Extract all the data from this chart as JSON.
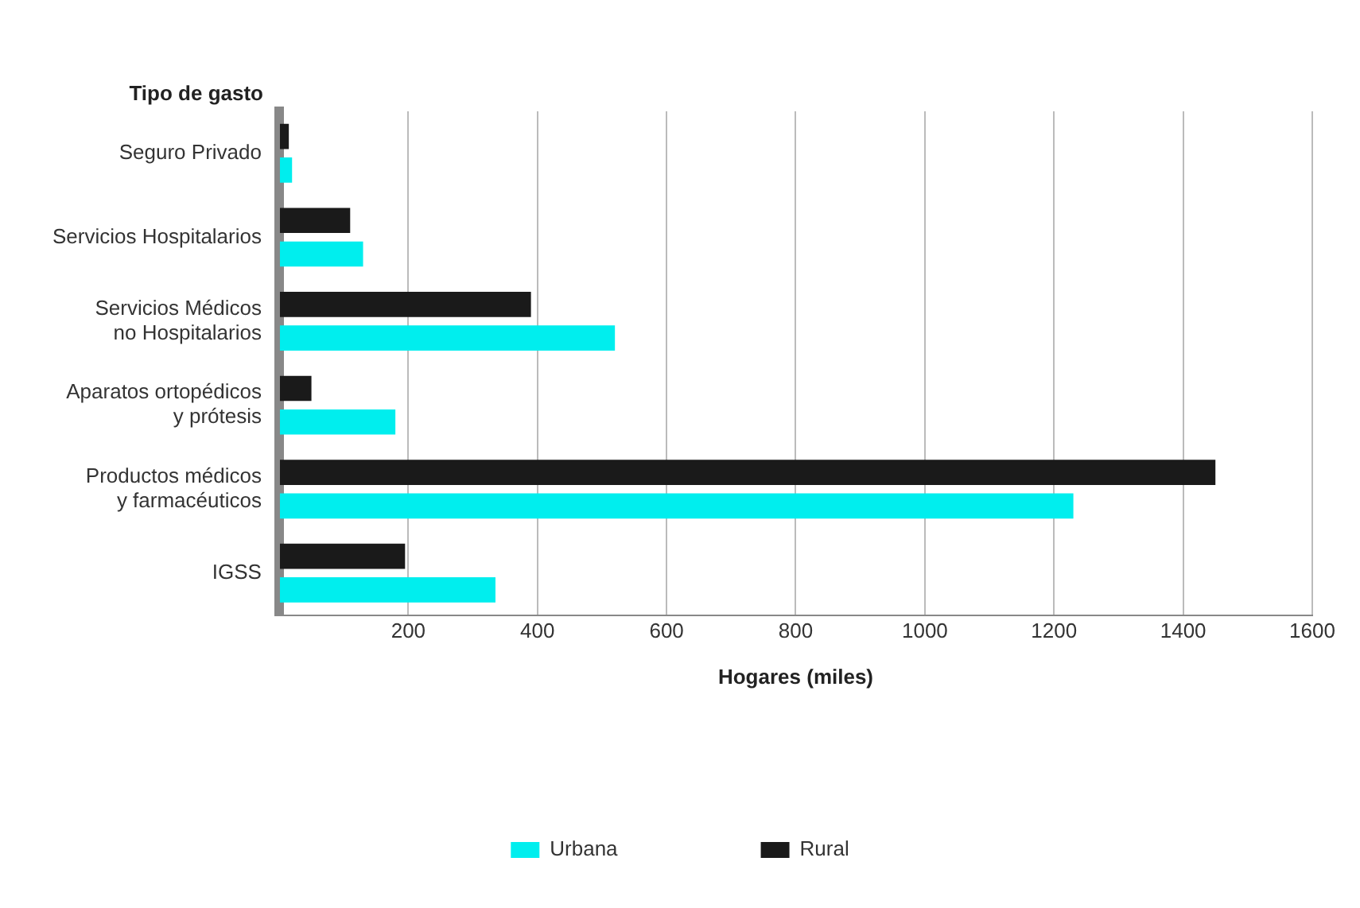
{
  "chart_data": {
    "type": "bar",
    "orientation": "horizontal",
    "ylabel": "Tipo de gasto",
    "xlabel": "Hogares (miles)",
    "categories": [
      "Seguro Privado",
      "Servicios Hospitalarios",
      "Servicios Médicos no Hospitalarios",
      "Aparatos ortopédicos y prótesis",
      "Productos médicos y farmacéuticos",
      "IGSS"
    ],
    "series": [
      {
        "name": "Urbana",
        "color": "#00eeee",
        "values": [
          20,
          130,
          520,
          180,
          1230,
          335
        ]
      },
      {
        "name": "Rural",
        "color": "#1a1a1a",
        "values": [
          15,
          110,
          390,
          50,
          1450,
          195
        ]
      }
    ],
    "xlim": [
      0,
      1600
    ],
    "xticks": [
      {
        "value": 0,
        "label": null
      },
      200,
      400,
      600,
      800,
      1000,
      1200,
      1400,
      1600
    ],
    "grid": "x",
    "legend": "bottom"
  }
}
